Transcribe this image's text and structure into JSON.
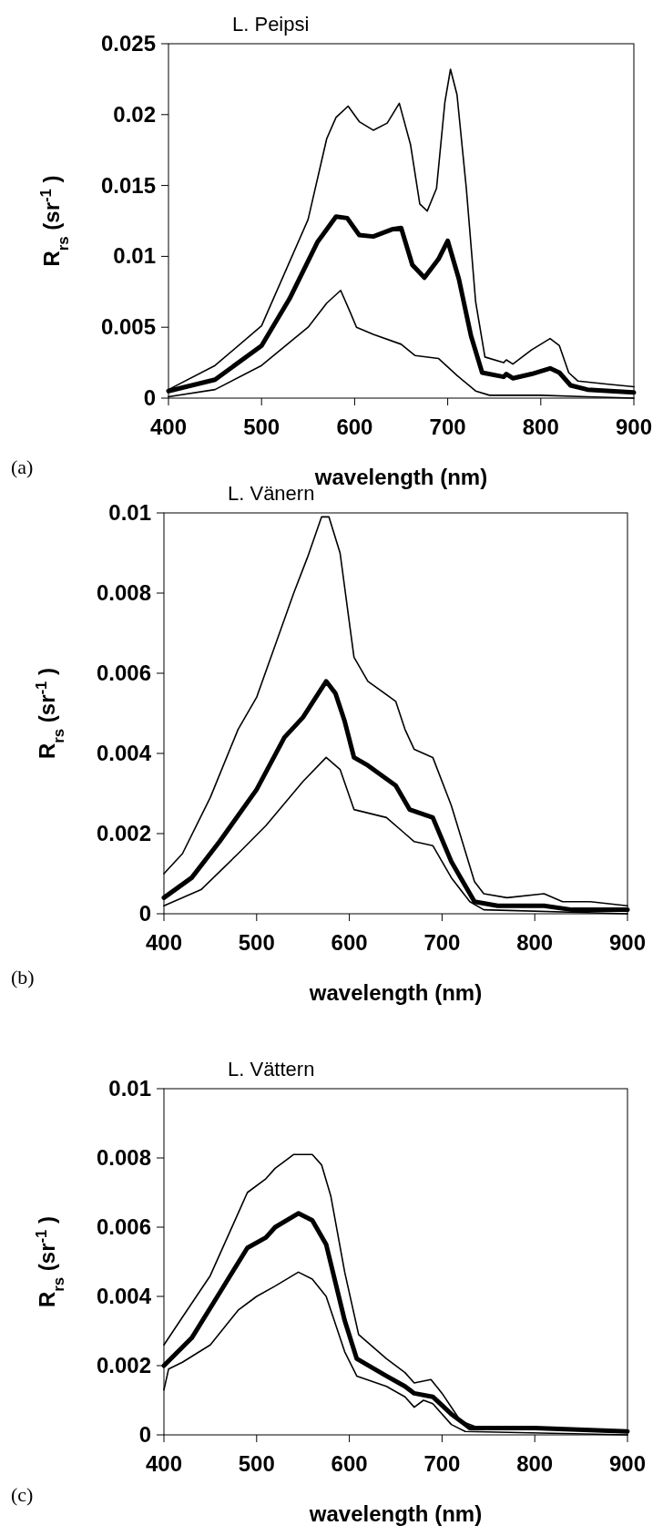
{
  "chart_data": [
    {
      "type": "line",
      "title": "L. Peipsi",
      "xlabel": "wavelength (nm)",
      "ylabel": "R$_{rs}$ (sr$^{-1}$)",
      "annotations": [
        "(a)"
      ],
      "xlim": [
        400,
        900
      ],
      "xticks": [
        400,
        500,
        600,
        700,
        800,
        900
      ],
      "ylim": [
        0,
        0.025
      ],
      "yticks": [
        0,
        0.005,
        0.01,
        0.015,
        0.02,
        0.025
      ],
      "marker": "none",
      "series": [
        {
          "color": "#000000",
          "x": [
            400,
            450,
            500,
            550,
            570,
            580,
            593,
            605,
            620,
            635,
            648,
            660,
            670,
            678,
            688,
            697,
            703,
            710,
            720,
            730,
            740,
            760,
            763,
            770,
            790,
            810,
            820,
            830,
            840,
            870,
            900
          ],
          "values": [
            0.0006,
            0.0023,
            0.0051,
            0.0126,
            0.0183,
            0.0198,
            0.0206,
            0.0195,
            0.0189,
            0.0194,
            0.0208,
            0.0179,
            0.0137,
            0.0132,
            0.0148,
            0.0209,
            0.0232,
            0.0214,
            0.0148,
            0.0068,
            0.0029,
            0.0025,
            0.0027,
            0.0024,
            0.0034,
            0.0042,
            0.0037,
            0.0018,
            0.0012,
            0.001,
            0.0008
          ]
        },
        {
          "color": "#000000",
          "x": [
            400,
            450,
            500,
            530,
            560,
            580,
            592,
            605,
            620,
            640,
            650,
            662,
            675,
            690,
            700,
            712,
            725,
            737,
            760,
            763,
            770,
            790,
            810,
            820,
            832,
            850,
            900
          ],
          "values": [
            0.0005,
            0.0013,
            0.0037,
            0.007,
            0.011,
            0.0128,
            0.0127,
            0.0115,
            0.0114,
            0.0119,
            0.012,
            0.0094,
            0.0085,
            0.0098,
            0.0111,
            0.0084,
            0.0044,
            0.0018,
            0.0015,
            0.0017,
            0.0014,
            0.0017,
            0.0021,
            0.0018,
            0.0009,
            0.0006,
            0.0004
          ]
        },
        {
          "color": "#000000",
          "x": [
            400,
            450,
            500,
            550,
            570,
            585,
            595,
            602,
            620,
            650,
            665,
            690,
            710,
            730,
            745,
            800,
            850,
            900
          ],
          "values": [
            0.0001,
            0.0006,
            0.0023,
            0.005,
            0.0067,
            0.0076,
            0.0061,
            0.005,
            0.0045,
            0.0038,
            0.003,
            0.0028,
            0.0016,
            0.0005,
            0.0002,
            0.0002,
            0.0001,
            0.0
          ]
        }
      ]
    },
    {
      "type": "line",
      "title": "L. Vänern",
      "xlabel": "wavelength (nm)",
      "ylabel": "R$_{rs}$ (sr$^{-1}$)",
      "annotations": [
        "(b)"
      ],
      "xlim": [
        400,
        900
      ],
      "xticks": [
        400,
        500,
        600,
        700,
        800,
        900
      ],
      "ylim": [
        0,
        0.01
      ],
      "yticks": [
        0,
        0.002,
        0.004,
        0.006,
        0.008,
        0.01
      ],
      "marker": "none",
      "series": [
        {
          "color": "#000000",
          "x": [
            400,
            420,
            450,
            480,
            500,
            520,
            540,
            555,
            570,
            578,
            590,
            605,
            620,
            650,
            660,
            670,
            690,
            710,
            735,
            745,
            770,
            810,
            830,
            860,
            900
          ],
          "values": [
            0.001,
            0.0015,
            0.0029,
            0.0046,
            0.0054,
            0.0067,
            0.008,
            0.0089,
            0.0099,
            0.0099,
            0.009,
            0.0064,
            0.0058,
            0.0053,
            0.0046,
            0.0041,
            0.0039,
            0.0027,
            0.0008,
            0.0005,
            0.0004,
            0.0005,
            0.0003,
            0.0003,
            0.0002
          ]
        },
        {
          "color": "#000000",
          "x": [
            400,
            430,
            460,
            500,
            530,
            550,
            575,
            585,
            595,
            605,
            620,
            650,
            665,
            690,
            710,
            735,
            760,
            810,
            840,
            900
          ],
          "values": [
            0.0004,
            0.0009,
            0.0018,
            0.0031,
            0.0044,
            0.0049,
            0.0058,
            0.0055,
            0.0048,
            0.0039,
            0.0037,
            0.0032,
            0.0026,
            0.0024,
            0.0013,
            0.0003,
            0.0002,
            0.0002,
            0.0001,
            0.0001
          ]
        },
        {
          "color": "#000000",
          "x": [
            400,
            440,
            480,
            510,
            550,
            575,
            590,
            605,
            640,
            660,
            670,
            690,
            710,
            730,
            745,
            900
          ],
          "values": [
            0.0002,
            0.0006,
            0.0015,
            0.0022,
            0.0033,
            0.0039,
            0.0036,
            0.0026,
            0.0024,
            0.002,
            0.0018,
            0.0017,
            0.0009,
            0.0003,
            0.0001,
            0.0
          ]
        }
      ]
    },
    {
      "type": "line",
      "title": "L. Vättern",
      "xlabel": "wavelength (nm)",
      "ylabel": "R$_{rs}$ (sr$^{-1}$)",
      "annotations": [
        "(c)"
      ],
      "xlim": [
        400,
        900
      ],
      "xticks": [
        400,
        500,
        600,
        700,
        800,
        900
      ],
      "ylim": [
        0,
        0.01
      ],
      "yticks": [
        0,
        0.002,
        0.004,
        0.006,
        0.008,
        0.01
      ],
      "marker": "none",
      "series": [
        {
          "color": "#000000",
          "x": [
            400,
            420,
            450,
            480,
            490,
            510,
            520,
            540,
            560,
            570,
            580,
            595,
            610,
            640,
            660,
            670,
            688,
            700,
            720,
            740,
            800,
            900
          ],
          "values": [
            0.0026,
            0.0034,
            0.0046,
            0.0064,
            0.007,
            0.0074,
            0.0077,
            0.0081,
            0.0081,
            0.0078,
            0.0069,
            0.0047,
            0.0029,
            0.0022,
            0.0018,
            0.0015,
            0.0016,
            0.0012,
            0.0004,
            0.0002,
            0.0002,
            0.0001
          ]
        },
        {
          "color": "#000000",
          "x": [
            400,
            430,
            460,
            490,
            510,
            520,
            545,
            560,
            575,
            595,
            608,
            640,
            660,
            670,
            690,
            710,
            730,
            800,
            900
          ],
          "values": [
            0.002,
            0.0028,
            0.0041,
            0.0054,
            0.0057,
            0.006,
            0.0064,
            0.0062,
            0.0055,
            0.0033,
            0.0022,
            0.0017,
            0.0014,
            0.0012,
            0.0011,
            0.0006,
            0.0002,
            0.0002,
            0.0001
          ]
        },
        {
          "color": "#000000",
          "x": [
            400,
            405,
            420,
            450,
            480,
            500,
            520,
            545,
            560,
            575,
            595,
            608,
            640,
            660,
            670,
            680,
            690,
            710,
            725,
            900
          ],
          "values": [
            0.0013,
            0.0019,
            0.0021,
            0.0026,
            0.0036,
            0.004,
            0.0043,
            0.0047,
            0.0045,
            0.004,
            0.0024,
            0.0017,
            0.0014,
            0.0011,
            0.0008,
            0.001,
            0.0009,
            0.0003,
            0.0001,
            0.0
          ]
        }
      ]
    }
  ]
}
